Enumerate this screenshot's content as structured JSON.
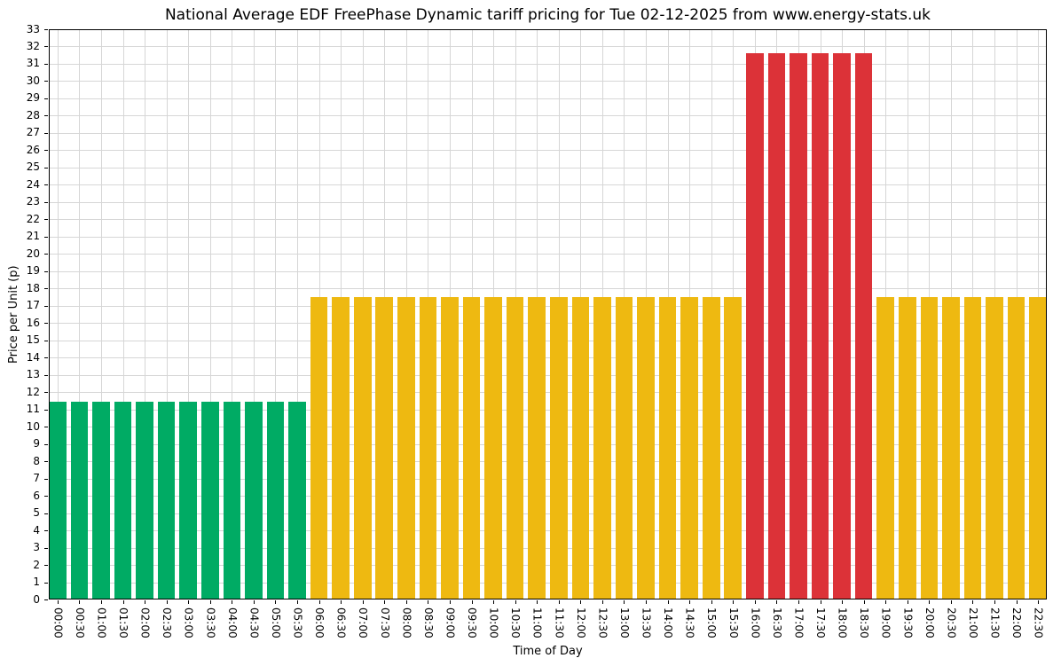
{
  "chart_data": {
    "type": "bar",
    "title": "National Average EDF FreePhase Dynamic tariff pricing for Tue 02-12-2025 from www.energy-stats.uk",
    "xlabel": "Time of Day",
    "ylabel": "Price per Unit (p)",
    "ylim": [
      0,
      33
    ],
    "ytick_step": 1,
    "grid": true,
    "legend_position": "none",
    "categories": [
      "00:00",
      "00:30",
      "01:00",
      "01:30",
      "02:00",
      "02:30",
      "03:00",
      "03:30",
      "04:00",
      "04:30",
      "05:00",
      "05:30",
      "06:00",
      "06:30",
      "07:00",
      "07:30",
      "08:00",
      "08:30",
      "09:00",
      "09:30",
      "10:00",
      "10:30",
      "11:00",
      "11:30",
      "12:00",
      "12:30",
      "13:00",
      "13:30",
      "14:00",
      "14:30",
      "15:00",
      "15:30",
      "16:00",
      "16:30",
      "17:00",
      "17:30",
      "18:00",
      "18:30",
      "19:00",
      "19:30",
      "20:00",
      "20:30",
      "21:00",
      "21:30",
      "22:00",
      "22:30"
    ],
    "values": [
      11.44,
      11.44,
      11.44,
      11.44,
      11.44,
      11.44,
      11.44,
      11.44,
      11.44,
      11.44,
      11.44,
      11.44,
      17.52,
      17.52,
      17.52,
      17.52,
      17.52,
      17.52,
      17.52,
      17.52,
      17.52,
      17.52,
      17.52,
      17.52,
      17.52,
      17.52,
      17.52,
      17.52,
      17.52,
      17.52,
      17.52,
      17.52,
      31.62,
      31.62,
      31.62,
      31.62,
      31.62,
      31.62,
      17.52,
      17.52,
      17.52,
      17.52,
      17.52,
      17.52,
      17.52,
      17.52
    ],
    "tiers": [
      "low",
      "low",
      "low",
      "low",
      "low",
      "low",
      "low",
      "low",
      "low",
      "low",
      "low",
      "low",
      "mid",
      "mid",
      "mid",
      "mid",
      "mid",
      "mid",
      "mid",
      "mid",
      "mid",
      "mid",
      "mid",
      "mid",
      "mid",
      "mid",
      "mid",
      "mid",
      "mid",
      "mid",
      "mid",
      "mid",
      "high",
      "high",
      "high",
      "high",
      "high",
      "high",
      "mid",
      "mid",
      "mid",
      "mid",
      "mid",
      "mid",
      "mid",
      "mid"
    ],
    "tier_colors": {
      "low": "#00ab64",
      "mid": "#eeb911",
      "high": "#dc3238"
    },
    "tier_values": {
      "low": 11.44,
      "mid": 17.52,
      "high": 31.62
    },
    "grid_color": "#d6d6d6",
    "axis_color": "#000000",
    "background_color": "#ffffff"
  }
}
